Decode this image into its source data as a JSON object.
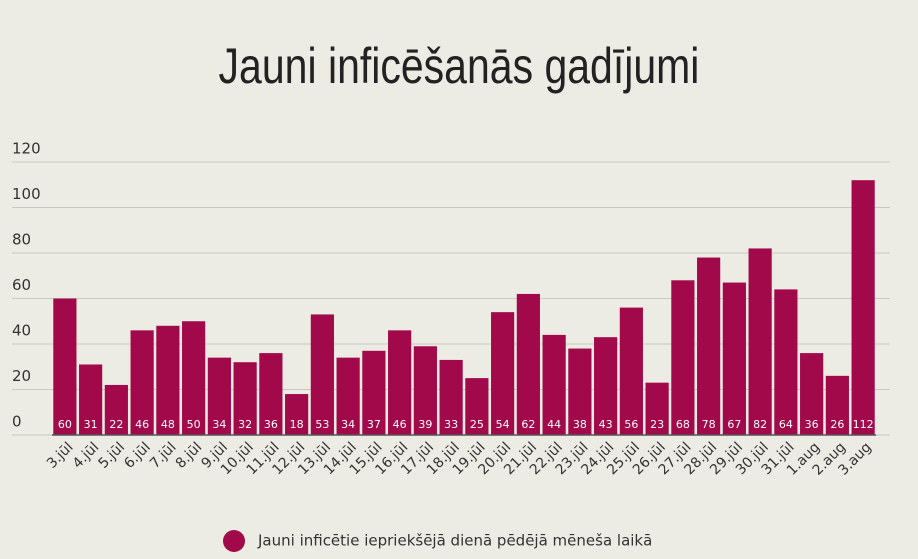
{
  "chart_data": {
    "type": "bar",
    "title": "Jauni inficēšanās gadījumi",
    "categories": [
      "3.jūl",
      "4.jūl",
      "5.jūl",
      "6.jūl",
      "7.jūl",
      "8.jūl",
      "9.jūl",
      "10.jūl",
      "11.jūl",
      "12.jūl",
      "13.jūl",
      "14.jūl",
      "15.jūl",
      "16.jūl",
      "17.jūl",
      "18.jūl",
      "19.jūl",
      "20.jūl",
      "21.jūl",
      "22.jūl",
      "23.jūl",
      "24.jūl",
      "25.jūl",
      "26.jūl",
      "27.jūl",
      "28.jūl",
      "29.jūl",
      "30.jūl",
      "31.jūl",
      "1.aug",
      "2.aug",
      "3.aug"
    ],
    "series": [
      {
        "name": "Jauni inficētie iepriekšējā dienā pēdējā mēneša laikā",
        "color": "#a1094b",
        "values": [
          60,
          31,
          22,
          46,
          48,
          50,
          34,
          32,
          36,
          18,
          53,
          34,
          37,
          46,
          39,
          33,
          25,
          54,
          62,
          44,
          38,
          43,
          56,
          23,
          68,
          78,
          67,
          82,
          64,
          36,
          26,
          112
        ]
      }
    ],
    "ylim": [
      0,
      120
    ],
    "yticks": [
      0,
      20,
      40,
      60,
      80,
      100,
      120
    ],
    "grid": true
  }
}
